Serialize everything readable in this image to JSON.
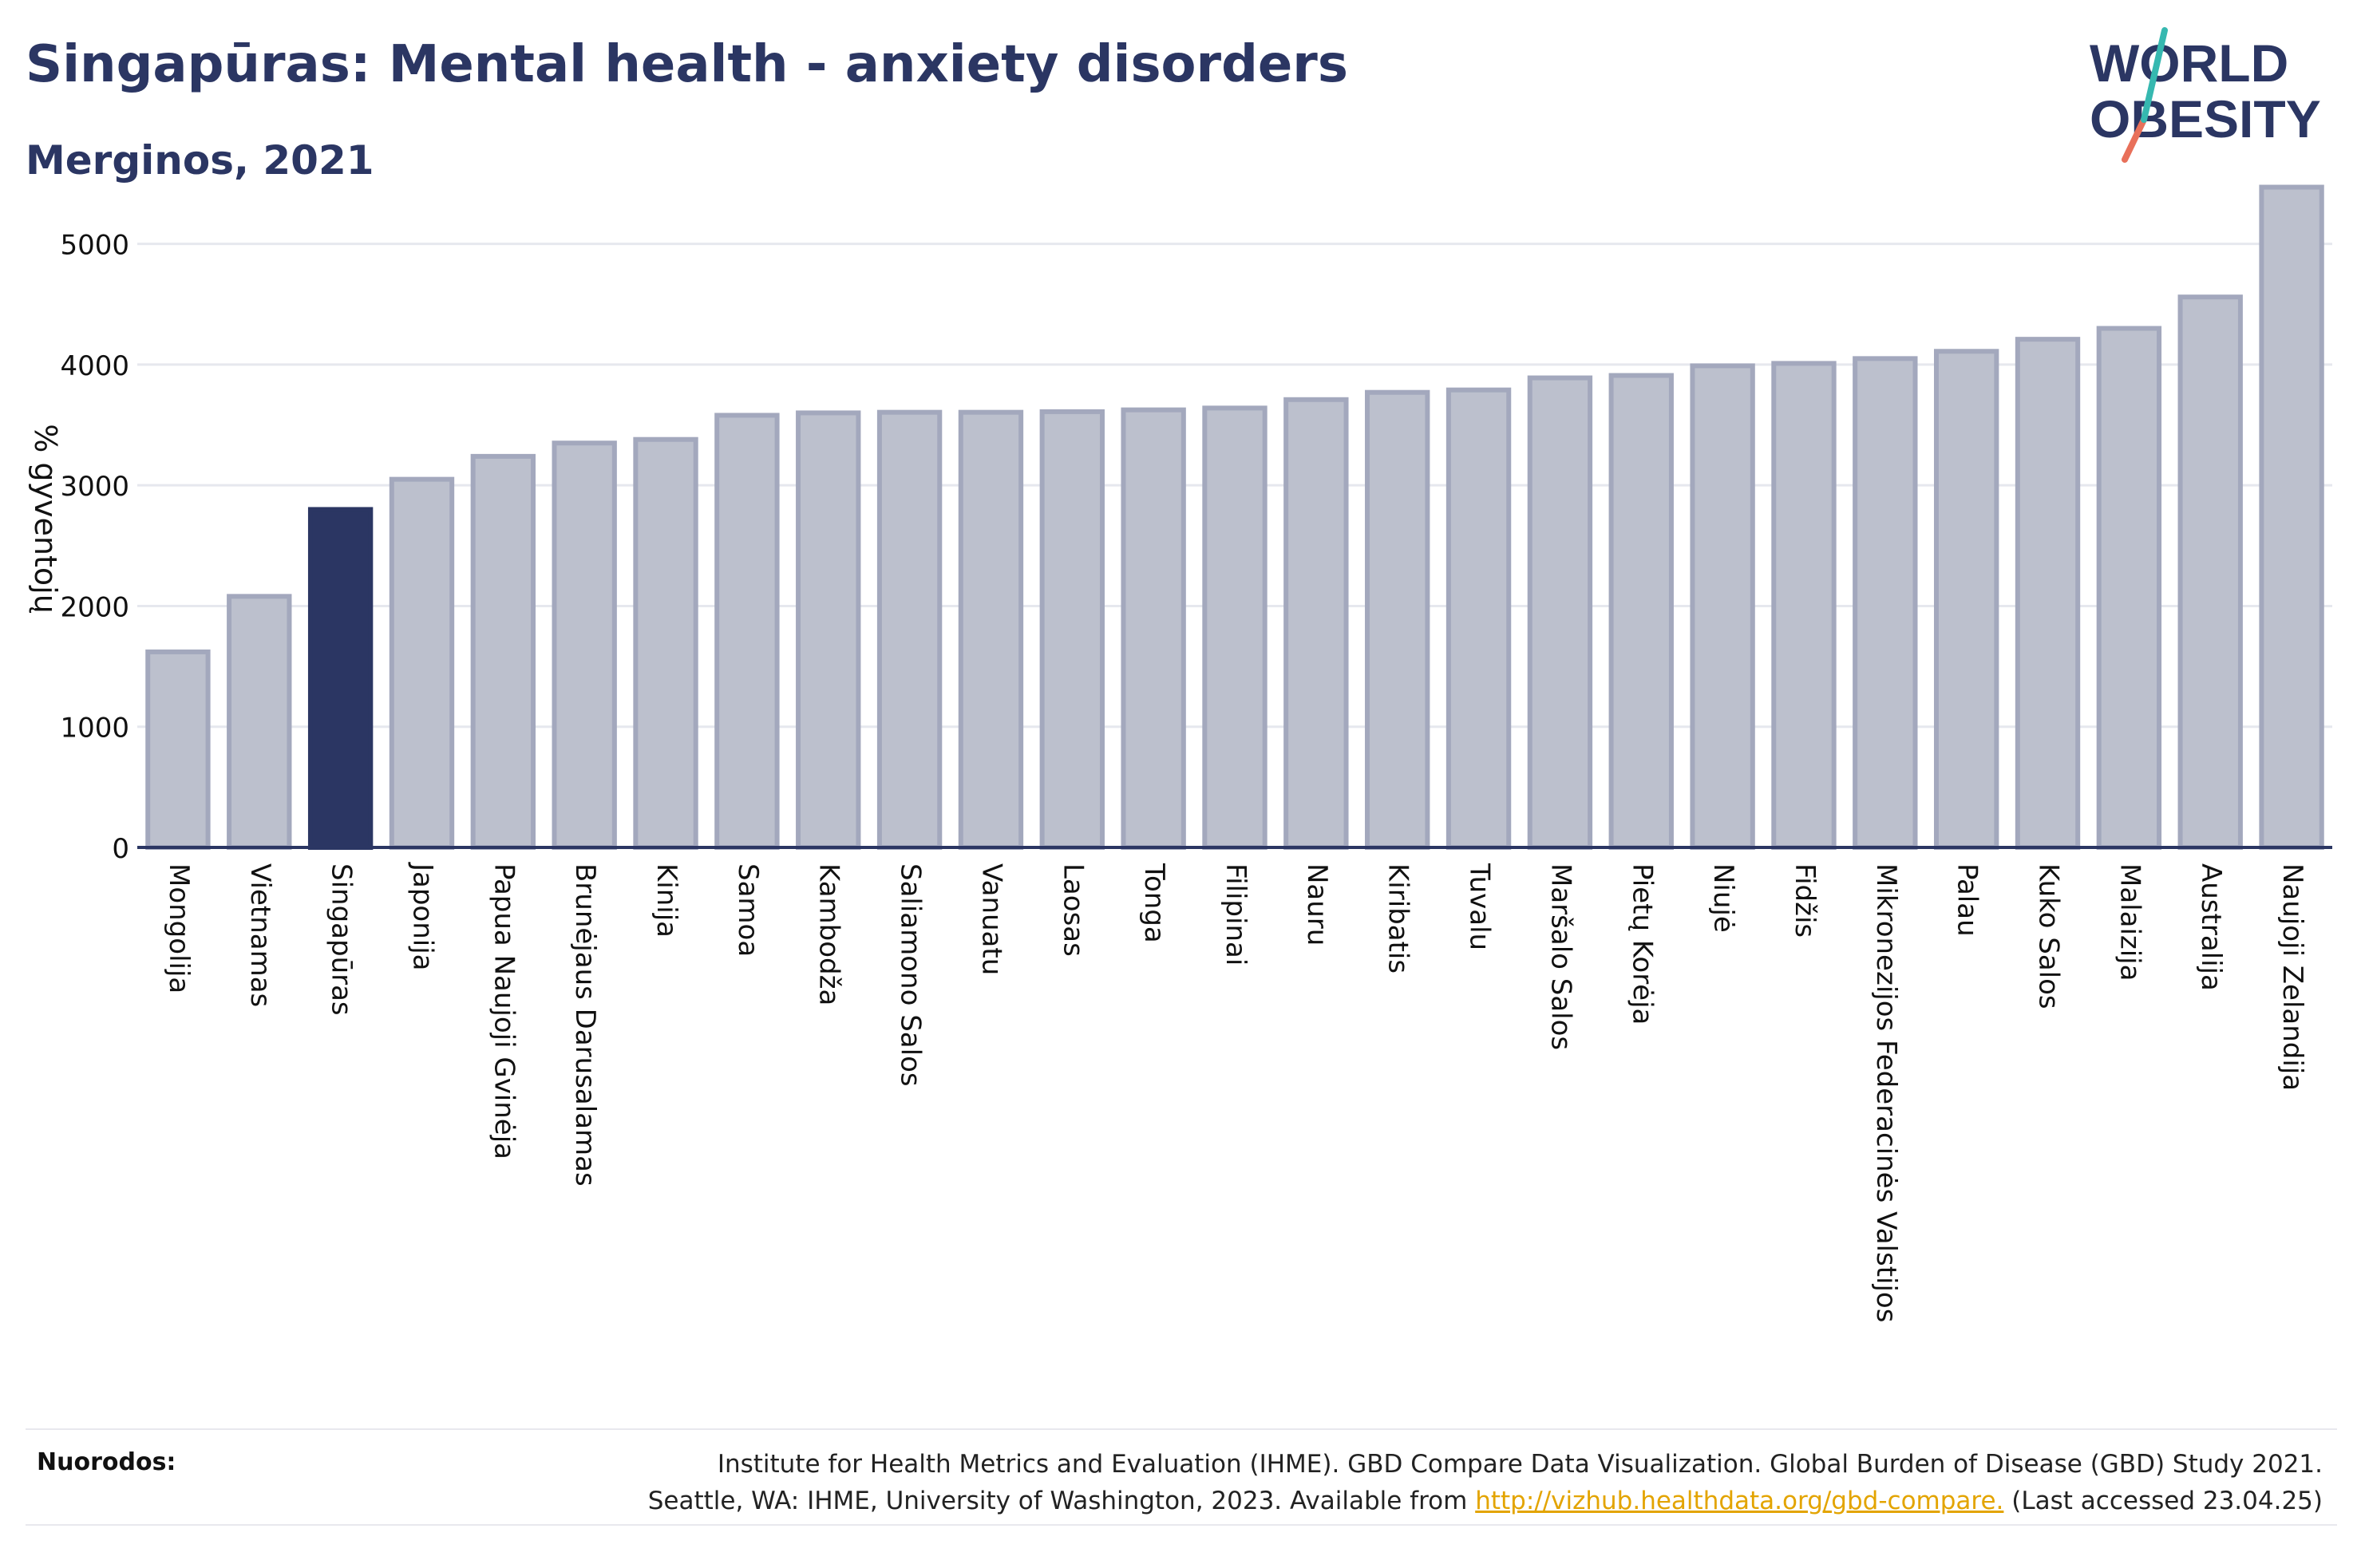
{
  "title": "Singapūras: Mental health - anxiety disorders",
  "subtitle": "Merginos, 2021",
  "logo": {
    "line1": "WORLD",
    "line2": "OBESITY"
  },
  "footer": {
    "label": "Nuorodos:",
    "line1": "Institute for Health Metrics and Evaluation (IHME). GBD Compare Data Visualization. Global Burden of Disease (GBD) Study 2021.",
    "line2_prefix": "Seattle, WA: IHME, University of Washington, 2023. Available from ",
    "link": "http://vizhub.healthdata.org/gbd-compare.",
    "line2_suffix": " (Last accessed 23.04.25)"
  },
  "colors": {
    "highlight": "#2b3663",
    "bar_fill": "#bcc0cd",
    "bar_stroke": "#a3a8bd",
    "grid": "#e6e8ee"
  },
  "chart_data": {
    "type": "bar",
    "ylabel": "% gyventojų",
    "xlabel": "",
    "ylim": [
      0,
      5500
    ],
    "yticks": [
      0,
      1000,
      2000,
      3000,
      4000,
      5000
    ],
    "grid": true,
    "highlight": "Singapūras",
    "categories": [
      "Mongolija",
      "Vietnamas",
      "Singapūras",
      "Japonija",
      "Papua Naujoji Gvinėja",
      "Brunėjaus Darusalamas",
      "Kinija",
      "Samoa",
      "Kambodža",
      "Saliamono Salos",
      "Vanuatu",
      "Laosas",
      "Tonga",
      "Filipinai",
      "Nauru",
      "Kiribatis",
      "Tuvalu",
      "Maršalo Salos",
      "Pietų Korėja",
      "Niujė",
      "Fidžis",
      "Mikronezijos Federacinės Valstijos",
      "Palau",
      "Kuko Salos",
      "Malaizija",
      "Australija",
      "Naujoji Zelandija"
    ],
    "values": [
      1620,
      2080,
      2800,
      3050,
      3240,
      3350,
      3380,
      3580,
      3600,
      3605,
      3605,
      3610,
      3625,
      3640,
      3710,
      3770,
      3790,
      3890,
      3910,
      3990,
      4010,
      4050,
      4110,
      4210,
      4300,
      4560,
      5470
    ]
  }
}
